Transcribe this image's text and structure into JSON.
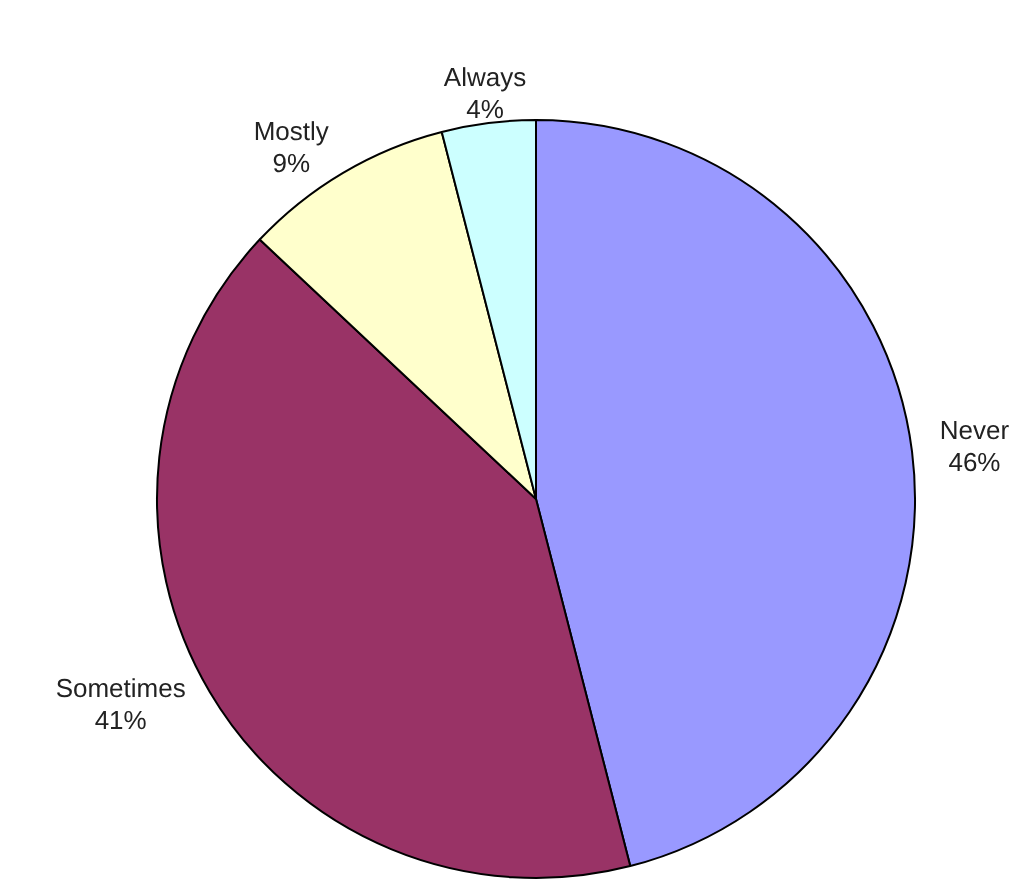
{
  "chart_data": {
    "type": "pie",
    "categories": [
      "Never",
      "Sometimes",
      "Mostly",
      "Always"
    ],
    "values": [
      46,
      41,
      9,
      4
    ],
    "colors": [
      "#9999ff",
      "#993366",
      "#ffffcc",
      "#ccffff"
    ],
    "value_labels": [
      "46%",
      "41%",
      "9%",
      "4%"
    ],
    "legend": false
  }
}
